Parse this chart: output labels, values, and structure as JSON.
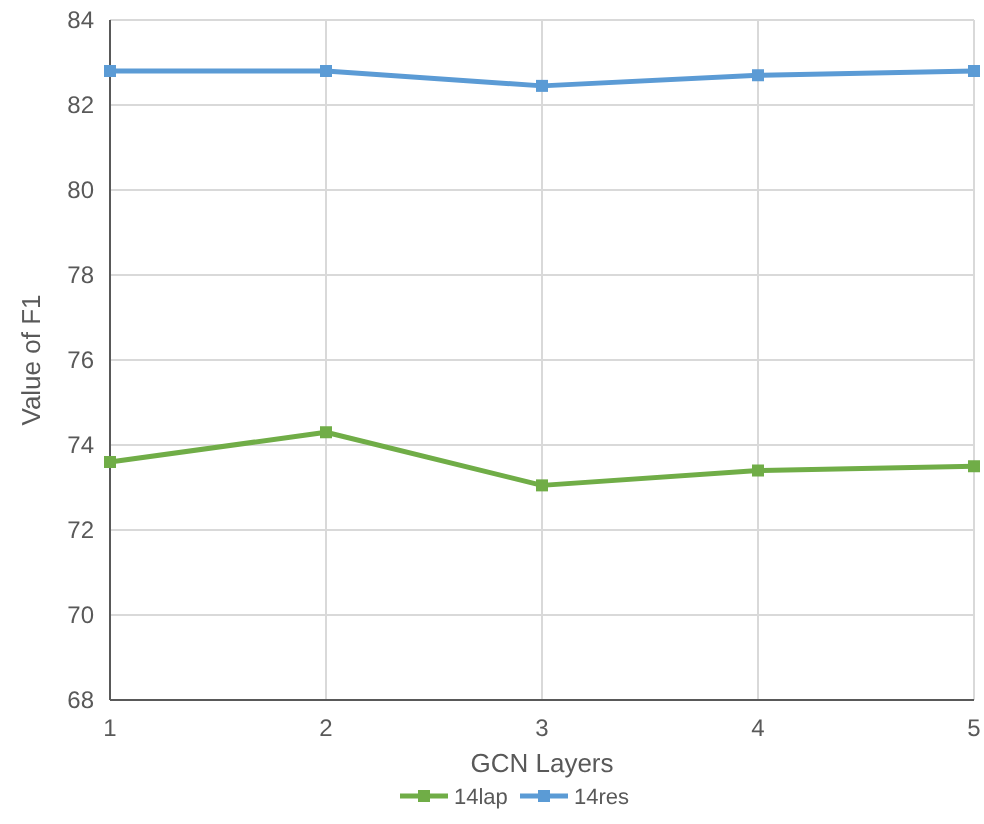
{
  "chart_data": {
    "type": "line",
    "xlabel": "GCN Layers",
    "ylabel": "Value of  F1",
    "x": [
      1,
      2,
      3,
      4,
      5
    ],
    "xlim": [
      1,
      5
    ],
    "xticks": [
      1,
      2,
      3,
      4,
      5
    ],
    "ylim": [
      68,
      84
    ],
    "yticks": [
      68,
      70,
      72,
      74,
      76,
      78,
      80,
      82,
      84
    ],
    "grid": true,
    "legend": "bottom",
    "marker": "square",
    "line_style": "solid",
    "series": [
      {
        "name": "14lap",
        "color": "#70ad47",
        "values": [
          73.6,
          74.3,
          73.05,
          73.4,
          73.5
        ]
      },
      {
        "name": "14res",
        "color": "#5b9bd5",
        "values": [
          82.8,
          82.8,
          82.45,
          82.7,
          82.8
        ]
      }
    ]
  }
}
